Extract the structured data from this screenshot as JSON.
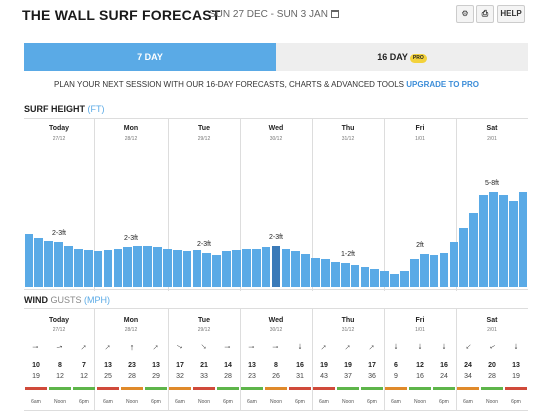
{
  "header": {
    "title": "THE WALL SURF FORECAST",
    "date_range": "SUN 27 DEC - SUN 3 JAN",
    "settings_icon": "gear-icon",
    "print_icon": "print-icon",
    "help_label": "HELP"
  },
  "tabs": {
    "seven_day": "7 DAY",
    "sixteen_day": "16 DAY",
    "pro_badge": "PRO"
  },
  "promo": {
    "text": "PLAN YOUR NEXT SESSION WITH OUR 16-DAY FORECASTS, CHARTS & ADVANCED TOOLS ",
    "link": "UPGRADE TO PRO"
  },
  "surf": {
    "title": "SURF HEIGHT",
    "unit": "(FT)"
  },
  "wind": {
    "title": "WIND",
    "gusts": "GUSTS",
    "unit": "(MPH)"
  },
  "days": [
    {
      "name": "Today",
      "date": "27/12",
      "surf_label": "2-3ft"
    },
    {
      "name": "Mon",
      "date": "28/12",
      "surf_label": "2-3ft"
    },
    {
      "name": "Tue",
      "date": "29/12",
      "surf_label": "2-3ft"
    },
    {
      "name": "Wed",
      "date": "30/12",
      "surf_label": "2-3ft"
    },
    {
      "name": "Thu",
      "date": "31/12",
      "surf_label": "1-2ft"
    },
    {
      "name": "Fri",
      "date": "1/01",
      "surf_label": "2ft"
    },
    {
      "name": "Sat",
      "date": "2/01",
      "surf_label": "5-8ft"
    }
  ],
  "time_labels": [
    "6am",
    "Noon",
    "6pm"
  ],
  "chart_data": {
    "type": "bar",
    "title": "SURF HEIGHT",
    "ylabel": "(FT)",
    "categories": [
      "Today",
      "Mon",
      "Tue",
      "Wed",
      "Thu",
      "Fri",
      "Sat"
    ],
    "surf_fraction": [
      0.4,
      0.37,
      0.35,
      0.34,
      0.31,
      0.29,
      0.28,
      0.27,
      0.28,
      0.29,
      0.3,
      0.31,
      0.31,
      0.3,
      0.29,
      0.28,
      0.27,
      0.28,
      0.26,
      0.24,
      0.27,
      0.28,
      0.29,
      0.29,
      0.3,
      0.31,
      0.29,
      0.27,
      0.25,
      0.22,
      0.21,
      0.19,
      0.18,
      0.17,
      0.15,
      0.14,
      0.12,
      0.1,
      0.12,
      0.21,
      0.25,
      0.24,
      0.26,
      0.34,
      0.45,
      0.56,
      0.7,
      0.72,
      0.7,
      0.65,
      0.72
    ],
    "wind": {
      "speed": [
        10,
        8,
        7,
        13,
        23,
        13,
        17,
        21,
        14,
        13,
        8,
        16,
        19,
        19,
        17,
        6,
        12,
        16,
        24,
        20,
        13
      ],
      "gusts": [
        19,
        12,
        12,
        25,
        28,
        29,
        32,
        33,
        28,
        23,
        26,
        31,
        43,
        37,
        36,
        9,
        16,
        24,
        34,
        28,
        19
      ],
      "direction_deg": [
        90,
        75,
        45,
        45,
        0,
        45,
        120,
        135,
        90,
        90,
        90,
        180,
        45,
        45,
        45,
        180,
        180,
        180,
        225,
        240,
        180
      ],
      "rating": [
        "red",
        "green",
        "green",
        "red",
        "orange",
        "green",
        "orange",
        "red",
        "green",
        "green",
        "orange",
        "red",
        "red",
        "green",
        "green",
        "orange",
        "green",
        "green",
        "orange",
        "green",
        "red"
      ]
    },
    "colors": {
      "bar": "#5aaae6",
      "bar_dark": "#3b7ab8",
      "red": "#d04a3a",
      "green": "#5eb54a",
      "orange": "#e08a2a"
    }
  }
}
